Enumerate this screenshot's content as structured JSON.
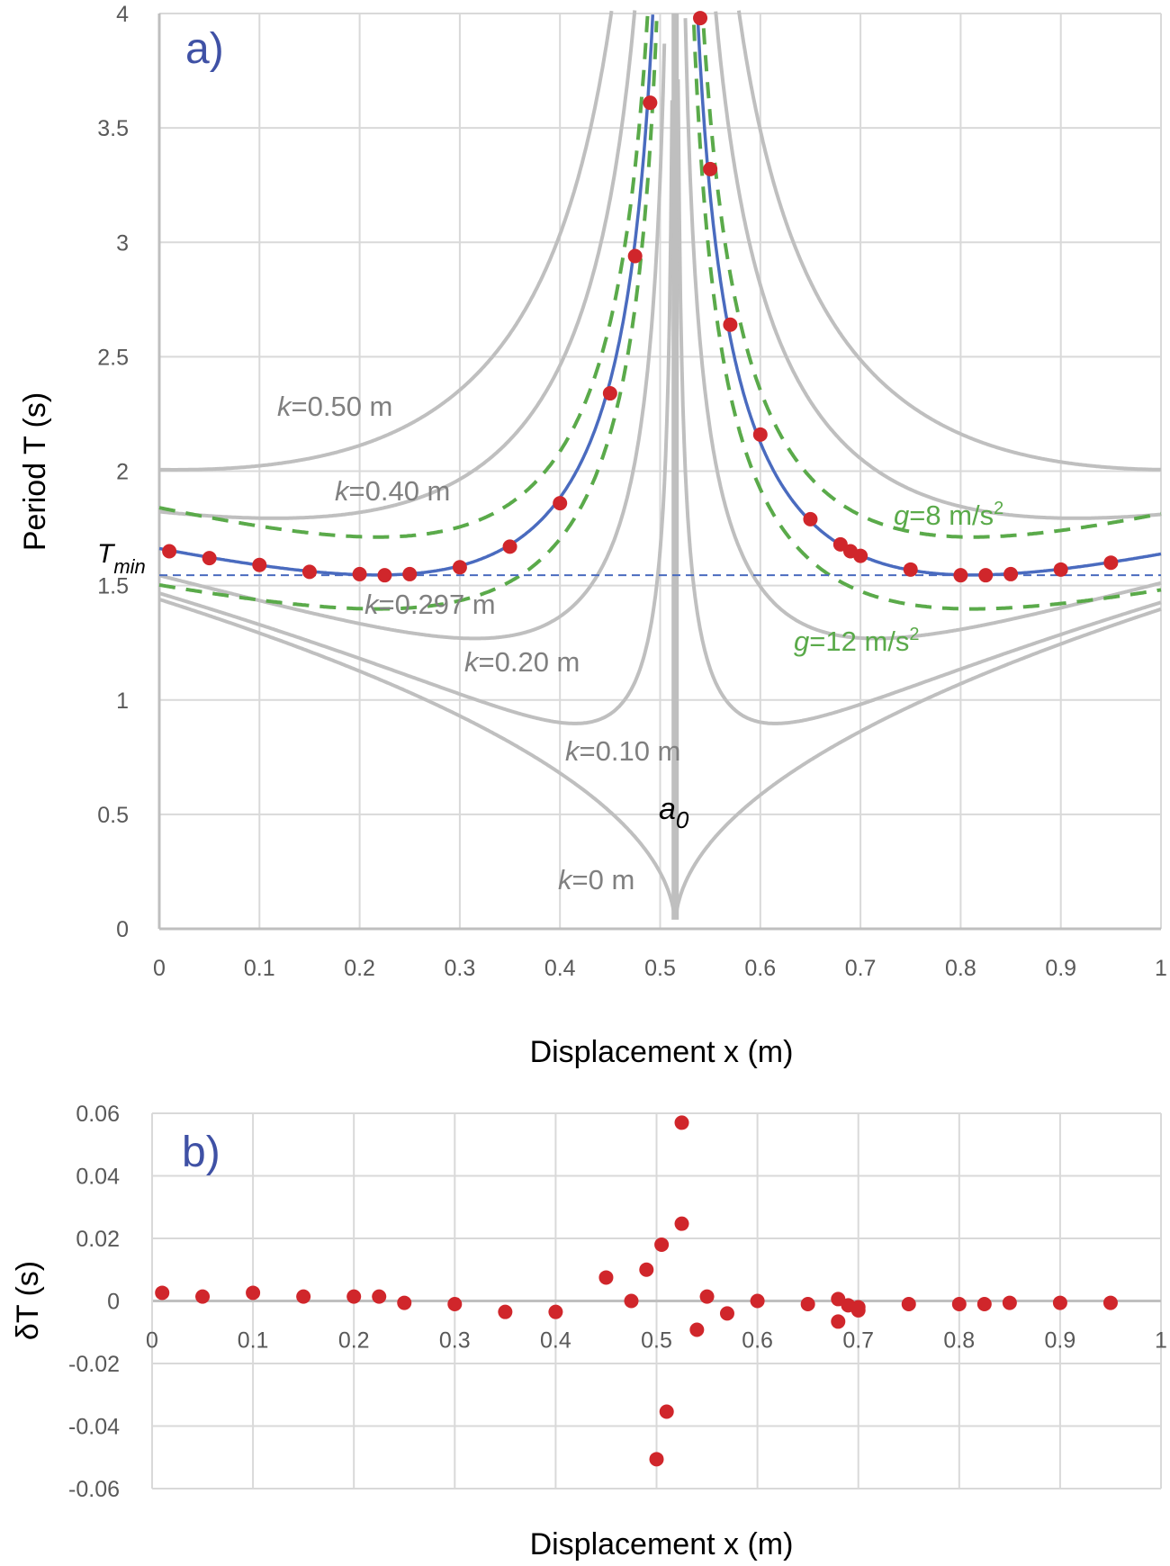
{
  "chart_data": [
    {
      "type": "line",
      "panel_label": "a)",
      "xlabel": "Displacement x (m)",
      "ylabel": "Period T (s)",
      "xlim": [
        0,
        1
      ],
      "ylim": [
        0,
        4
      ],
      "x_ticks": [
        "0",
        "0.1",
        "0.2",
        "0.3",
        "0.4",
        "0.5",
        "0.6",
        "0.7",
        "0.8",
        "0.9",
        "1"
      ],
      "y_ticks": [
        "0",
        "0.5",
        "1",
        "1.5",
        "2",
        "2.5",
        "3",
        "3.5",
        "4"
      ],
      "grid": true,
      "model": {
        "a0": 0.515,
        "g_ref": 9.81
      },
      "gray_curves": [
        {
          "k": 0.5,
          "label": "=0.50 m"
        },
        {
          "k": 0.4,
          "label": "=0.40 m"
        },
        {
          "k": 0.2,
          "label": "=0.20 m"
        },
        {
          "k": 0.1,
          "label": "=0.10 m"
        },
        {
          "k": 0.0,
          "label": "=0 m"
        }
      ],
      "fit_curve": {
        "k": 0.297,
        "label": "=0.297 m",
        "color": "#4a6bbf"
      },
      "g_curves": [
        {
          "g": 8,
          "k": 0.297,
          "label": "=8 m/s",
          "color": "#5aaa4a"
        },
        {
          "g": 12,
          "k": 0.297,
          "label": "=12 m/s",
          "color": "#5aaa4a"
        }
      ],
      "tmin": {
        "value": 1.545,
        "label": "T",
        "sub": "min"
      },
      "a0_label": {
        "main": "a",
        "sub": "0"
      },
      "k_prefix": "k",
      "g_prefix": "g",
      "sup2": "2",
      "points": {
        "color": "#d0262b",
        "x": [
          0.01,
          0.05,
          0.1,
          0.15,
          0.2,
          0.225,
          0.25,
          0.3,
          0.35,
          0.4,
          0.45,
          0.475,
          0.49,
          0.54,
          0.55,
          0.57,
          0.6,
          0.65,
          0.68,
          0.69,
          0.7,
          0.75,
          0.8,
          0.825,
          0.85,
          0.9,
          0.95
        ],
        "y": [
          1.65,
          1.62,
          1.59,
          1.56,
          1.55,
          1.545,
          1.55,
          1.58,
          1.67,
          1.86,
          2.34,
          2.94,
          3.61,
          3.98,
          3.32,
          2.64,
          2.16,
          1.79,
          1.68,
          1.65,
          1.63,
          1.57,
          1.545,
          1.545,
          1.55,
          1.57,
          1.6
        ]
      }
    },
    {
      "type": "scatter",
      "panel_label": "b)",
      "xlabel": "Displacement x (m)",
      "ylabel": "δT (s)",
      "xlim": [
        0,
        1
      ],
      "ylim": [
        -0.06,
        0.06
      ],
      "x_ticks": [
        "0",
        "0.1",
        "0.2",
        "0.3",
        "0.4",
        "0.5",
        "0.6",
        "0.7",
        "0.8",
        "0.9",
        "1"
      ],
      "y_ticks": [
        "-0.06",
        "-0.04",
        "-0.02",
        "0",
        "0.02",
        "0.04",
        "0.06"
      ],
      "grid": true,
      "points": {
        "color": "#d0262b",
        "x": [
          0.01,
          0.05,
          0.1,
          0.15,
          0.2,
          0.225,
          0.25,
          0.3,
          0.35,
          0.4,
          0.45,
          0.475,
          0.49,
          0.505,
          0.525,
          0.525,
          0.5,
          0.51,
          0.54,
          0.55,
          0.57,
          0.6,
          0.65,
          0.68,
          0.68,
          0.69,
          0.7,
          0.7,
          0.75,
          0.8,
          0.825,
          0.85,
          0.9,
          0.95
        ],
        "y": [
          0.0026,
          0.0014,
          0.0026,
          0.0014,
          0.0014,
          0.0014,
          -0.0006,
          -0.001,
          -0.0035,
          -0.0035,
          0.0075,
          0.0,
          0.01,
          0.018,
          0.0247,
          0.057,
          -0.0506,
          -0.0354,
          -0.0092,
          0.0014,
          -0.004,
          0.0,
          -0.001,
          0.0006,
          -0.0066,
          -0.0014,
          -0.002,
          -0.003,
          -0.001,
          -0.001,
          -0.001,
          -0.0006,
          -0.0006,
          -0.0006
        ]
      }
    }
  ]
}
